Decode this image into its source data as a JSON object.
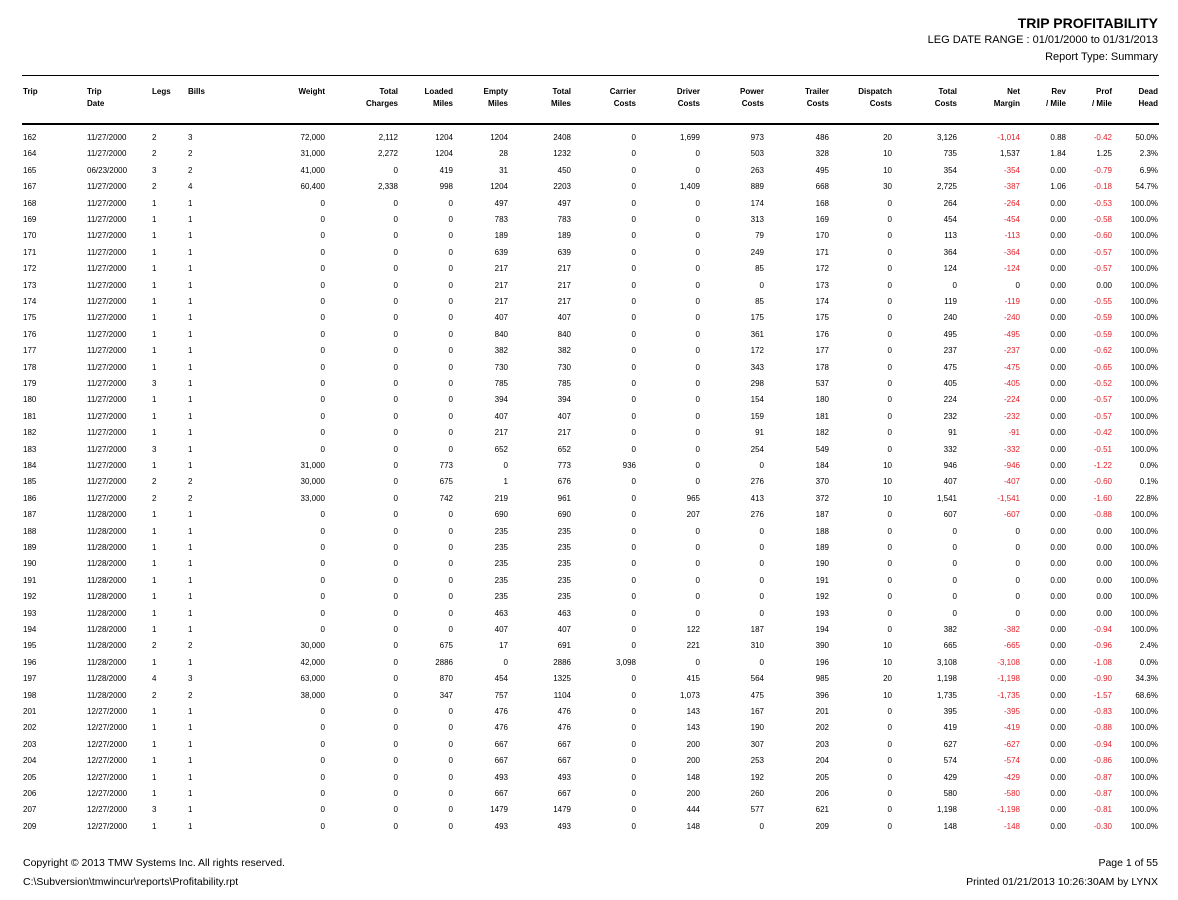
{
  "header": {
    "title": "TRIP PROFITABILITY",
    "date_range": "LEG DATE RANGE : 01/01/2000 to 01/31/2013",
    "report_type": "Report Type: Summary"
  },
  "table": {
    "headers": [
      [
        "Trip"
      ],
      [
        "Trip",
        "Date"
      ],
      [
        "Legs"
      ],
      [
        "Bills"
      ],
      [
        "Weight"
      ],
      [
        "Total",
        "Charges"
      ],
      [
        "Loaded",
        "Miles"
      ],
      [
        "Empty",
        "Miles"
      ],
      [
        "Total",
        "Miles"
      ],
      [
        "Carrier",
        "Costs"
      ],
      [
        "Driver",
        "Costs"
      ],
      [
        "Power",
        "Costs"
      ],
      [
        "Trailer",
        "Costs"
      ],
      [
        "Dispatch",
        "Costs"
      ],
      [
        "Total",
        "Costs"
      ],
      [
        "Net",
        "Margin"
      ],
      [
        "Rev",
        "/ Mile"
      ],
      [
        "Prof",
        "/ Mile"
      ],
      [
        "Dead",
        "Head"
      ]
    ],
    "rows": [
      [
        "162",
        "11/27/2000",
        "2",
        "3",
        "72,000",
        "2,112",
        "1204",
        "1204",
        "2408",
        "0",
        "1,699",
        "973",
        "486",
        "20",
        "3,126",
        "-1,014",
        "0.88",
        "-0.42",
        "50.0%"
      ],
      [
        "164",
        "11/27/2000",
        "2",
        "2",
        "31,000",
        "2,272",
        "1204",
        "28",
        "1232",
        "0",
        "0",
        "503",
        "328",
        "10",
        "735",
        "1,537",
        "1.84",
        "1.25",
        "2.3%"
      ],
      [
        "165",
        "06/23/2000",
        "3",
        "2",
        "41,000",
        "0",
        "419",
        "31",
        "450",
        "0",
        "0",
        "263",
        "495",
        "10",
        "354",
        "-354",
        "0.00",
        "-0.79",
        "6.9%"
      ],
      [
        "167",
        "11/27/2000",
        "2",
        "4",
        "60,400",
        "2,338",
        "998",
        "1204",
        "2203",
        "0",
        "1,409",
        "889",
        "668",
        "30",
        "2,725",
        "-387",
        "1.06",
        "-0.18",
        "54.7%"
      ],
      [
        "168",
        "11/27/2000",
        "1",
        "1",
        "0",
        "0",
        "0",
        "497",
        "497",
        "0",
        "0",
        "174",
        "168",
        "0",
        "264",
        "-264",
        "0.00",
        "-0.53",
        "100.0%"
      ],
      [
        "169",
        "11/27/2000",
        "1",
        "1",
        "0",
        "0",
        "0",
        "783",
        "783",
        "0",
        "0",
        "313",
        "169",
        "0",
        "454",
        "-454",
        "0.00",
        "-0.58",
        "100.0%"
      ],
      [
        "170",
        "11/27/2000",
        "1",
        "1",
        "0",
        "0",
        "0",
        "189",
        "189",
        "0",
        "0",
        "79",
        "170",
        "0",
        "113",
        "-113",
        "0.00",
        "-0.60",
        "100.0%"
      ],
      [
        "171",
        "11/27/2000",
        "1",
        "1",
        "0",
        "0",
        "0",
        "639",
        "639",
        "0",
        "0",
        "249",
        "171",
        "0",
        "364",
        "-364",
        "0.00",
        "-0.57",
        "100.0%"
      ],
      [
        "172",
        "11/27/2000",
        "1",
        "1",
        "0",
        "0",
        "0",
        "217",
        "217",
        "0",
        "0",
        "85",
        "172",
        "0",
        "124",
        "-124",
        "0.00",
        "-0.57",
        "100.0%"
      ],
      [
        "173",
        "11/27/2000",
        "1",
        "1",
        "0",
        "0",
        "0",
        "217",
        "217",
        "0",
        "0",
        "0",
        "173",
        "0",
        "0",
        "0",
        "0.00",
        "0.00",
        "100.0%"
      ],
      [
        "174",
        "11/27/2000",
        "1",
        "1",
        "0",
        "0",
        "0",
        "217",
        "217",
        "0",
        "0",
        "85",
        "174",
        "0",
        "119",
        "-119",
        "0.00",
        "-0.55",
        "100.0%"
      ],
      [
        "175",
        "11/27/2000",
        "1",
        "1",
        "0",
        "0",
        "0",
        "407",
        "407",
        "0",
        "0",
        "175",
        "175",
        "0",
        "240",
        "-240",
        "0.00",
        "-0.59",
        "100.0%"
      ],
      [
        "176",
        "11/27/2000",
        "1",
        "1",
        "0",
        "0",
        "0",
        "840",
        "840",
        "0",
        "0",
        "361",
        "176",
        "0",
        "495",
        "-495",
        "0.00",
        "-0.59",
        "100.0%"
      ],
      [
        "177",
        "11/27/2000",
        "1",
        "1",
        "0",
        "0",
        "0",
        "382",
        "382",
        "0",
        "0",
        "172",
        "177",
        "0",
        "237",
        "-237",
        "0.00",
        "-0.62",
        "100.0%"
      ],
      [
        "178",
        "11/27/2000",
        "1",
        "1",
        "0",
        "0",
        "0",
        "730",
        "730",
        "0",
        "0",
        "343",
        "178",
        "0",
        "475",
        "-475",
        "0.00",
        "-0.65",
        "100.0%"
      ],
      [
        "179",
        "11/27/2000",
        "3",
        "1",
        "0",
        "0",
        "0",
        "785",
        "785",
        "0",
        "0",
        "298",
        "537",
        "0",
        "405",
        "-405",
        "0.00",
        "-0.52",
        "100.0%"
      ],
      [
        "180",
        "11/27/2000",
        "1",
        "1",
        "0",
        "0",
        "0",
        "394",
        "394",
        "0",
        "0",
        "154",
        "180",
        "0",
        "224",
        "-224",
        "0.00",
        "-0.57",
        "100.0%"
      ],
      [
        "181",
        "11/27/2000",
        "1",
        "1",
        "0",
        "0",
        "0",
        "407",
        "407",
        "0",
        "0",
        "159",
        "181",
        "0",
        "232",
        "-232",
        "0.00",
        "-0.57",
        "100.0%"
      ],
      [
        "182",
        "11/27/2000",
        "1",
        "1",
        "0",
        "0",
        "0",
        "217",
        "217",
        "0",
        "0",
        "91",
        "182",
        "0",
        "91",
        "-91",
        "0.00",
        "-0.42",
        "100.0%"
      ],
      [
        "183",
        "11/27/2000",
        "3",
        "1",
        "0",
        "0",
        "0",
        "652",
        "652",
        "0",
        "0",
        "254",
        "549",
        "0",
        "332",
        "-332",
        "0.00",
        "-0.51",
        "100.0%"
      ],
      [
        "184",
        "11/27/2000",
        "1",
        "1",
        "31,000",
        "0",
        "773",
        "0",
        "773",
        "936",
        "0",
        "0",
        "184",
        "10",
        "946",
        "-946",
        "0.00",
        "-1.22",
        "0.0%"
      ],
      [
        "185",
        "11/27/2000",
        "2",
        "2",
        "30,000",
        "0",
        "675",
        "1",
        "676",
        "0",
        "0",
        "276",
        "370",
        "10",
        "407",
        "-407",
        "0.00",
        "-0.60",
        "0.1%"
      ],
      [
        "186",
        "11/27/2000",
        "2",
        "2",
        "33,000",
        "0",
        "742",
        "219",
        "961",
        "0",
        "965",
        "413",
        "372",
        "10",
        "1,541",
        "-1,541",
        "0.00",
        "-1.60",
        "22.8%"
      ],
      [
        "187",
        "11/28/2000",
        "1",
        "1",
        "0",
        "0",
        "0",
        "690",
        "690",
        "0",
        "207",
        "276",
        "187",
        "0",
        "607",
        "-607",
        "0.00",
        "-0.88",
        "100.0%"
      ],
      [
        "188",
        "11/28/2000",
        "1",
        "1",
        "0",
        "0",
        "0",
        "235",
        "235",
        "0",
        "0",
        "0",
        "188",
        "0",
        "0",
        "0",
        "0.00",
        "0.00",
        "100.0%"
      ],
      [
        "189",
        "11/28/2000",
        "1",
        "1",
        "0",
        "0",
        "0",
        "235",
        "235",
        "0",
        "0",
        "0",
        "189",
        "0",
        "0",
        "0",
        "0.00",
        "0.00",
        "100.0%"
      ],
      [
        "190",
        "11/28/2000",
        "1",
        "1",
        "0",
        "0",
        "0",
        "235",
        "235",
        "0",
        "0",
        "0",
        "190",
        "0",
        "0",
        "0",
        "0.00",
        "0.00",
        "100.0%"
      ],
      [
        "191",
        "11/28/2000",
        "1",
        "1",
        "0",
        "0",
        "0",
        "235",
        "235",
        "0",
        "0",
        "0",
        "191",
        "0",
        "0",
        "0",
        "0.00",
        "0.00",
        "100.0%"
      ],
      [
        "192",
        "11/28/2000",
        "1",
        "1",
        "0",
        "0",
        "0",
        "235",
        "235",
        "0",
        "0",
        "0",
        "192",
        "0",
        "0",
        "0",
        "0.00",
        "0.00",
        "100.0%"
      ],
      [
        "193",
        "11/28/2000",
        "1",
        "1",
        "0",
        "0",
        "0",
        "463",
        "463",
        "0",
        "0",
        "0",
        "193",
        "0",
        "0",
        "0",
        "0.00",
        "0.00",
        "100.0%"
      ],
      [
        "194",
        "11/28/2000",
        "1",
        "1",
        "0",
        "0",
        "0",
        "407",
        "407",
        "0",
        "122",
        "187",
        "194",
        "0",
        "382",
        "-382",
        "0.00",
        "-0.94",
        "100.0%"
      ],
      [
        "195",
        "11/28/2000",
        "2",
        "2",
        "30,000",
        "0",
        "675",
        "17",
        "691",
        "0",
        "221",
        "310",
        "390",
        "10",
        "665",
        "-665",
        "0.00",
        "-0.96",
        "2.4%"
      ],
      [
        "196",
        "11/28/2000",
        "1",
        "1",
        "42,000",
        "0",
        "2886",
        "0",
        "2886",
        "3,098",
        "0",
        "0",
        "196",
        "10",
        "3,108",
        "-3,108",
        "0.00",
        "-1.08",
        "0.0%"
      ],
      [
        "197",
        "11/28/2000",
        "4",
        "3",
        "63,000",
        "0",
        "870",
        "454",
        "1325",
        "0",
        "415",
        "564",
        "985",
        "20",
        "1,198",
        "-1,198",
        "0.00",
        "-0.90",
        "34.3%"
      ],
      [
        "198",
        "11/28/2000",
        "2",
        "2",
        "38,000",
        "0",
        "347",
        "757",
        "1104",
        "0",
        "1,073",
        "475",
        "396",
        "10",
        "1,735",
        "-1,735",
        "0.00",
        "-1.57",
        "68.6%"
      ],
      [
        "201",
        "12/27/2000",
        "1",
        "1",
        "0",
        "0",
        "0",
        "476",
        "476",
        "0",
        "143",
        "167",
        "201",
        "0",
        "395",
        "-395",
        "0.00",
        "-0.83",
        "100.0%"
      ],
      [
        "202",
        "12/27/2000",
        "1",
        "1",
        "0",
        "0",
        "0",
        "476",
        "476",
        "0",
        "143",
        "190",
        "202",
        "0",
        "419",
        "-419",
        "0.00",
        "-0.88",
        "100.0%"
      ],
      [
        "203",
        "12/27/2000",
        "1",
        "1",
        "0",
        "0",
        "0",
        "667",
        "667",
        "0",
        "200",
        "307",
        "203",
        "0",
        "627",
        "-627",
        "0.00",
        "-0.94",
        "100.0%"
      ],
      [
        "204",
        "12/27/2000",
        "1",
        "1",
        "0",
        "0",
        "0",
        "667",
        "667",
        "0",
        "200",
        "253",
        "204",
        "0",
        "574",
        "-574",
        "0.00",
        "-0.86",
        "100.0%"
      ],
      [
        "205",
        "12/27/2000",
        "1",
        "1",
        "0",
        "0",
        "0",
        "493",
        "493",
        "0",
        "148",
        "192",
        "205",
        "0",
        "429",
        "-429",
        "0.00",
        "-0.87",
        "100.0%"
      ],
      [
        "206",
        "12/27/2000",
        "1",
        "1",
        "0",
        "0",
        "0",
        "667",
        "667",
        "0",
        "200",
        "260",
        "206",
        "0",
        "580",
        "-580",
        "0.00",
        "-0.87",
        "100.0%"
      ],
      [
        "207",
        "12/27/2000",
        "3",
        "1",
        "0",
        "0",
        "0",
        "1479",
        "1479",
        "0",
        "444",
        "577",
        "621",
        "0",
        "1,198",
        "-1,198",
        "0.00",
        "-0.81",
        "100.0%"
      ],
      [
        "209",
        "12/27/2000",
        "1",
        "1",
        "0",
        "0",
        "0",
        "493",
        "493",
        "0",
        "148",
        "0",
        "209",
        "0",
        "148",
        "-148",
        "0.00",
        "-0.30",
        "100.0%"
      ]
    ]
  },
  "footer": {
    "copyright": "Copyright © 2013 TMW Systems Inc. All rights reserved.",
    "path": "C:\\Subversion\\tmwincur\\reports\\Profitability.rpt",
    "page": "Page 1 of 55",
    "printed": "Printed 01/21/2013 10:26:30AM by LYNX"
  }
}
